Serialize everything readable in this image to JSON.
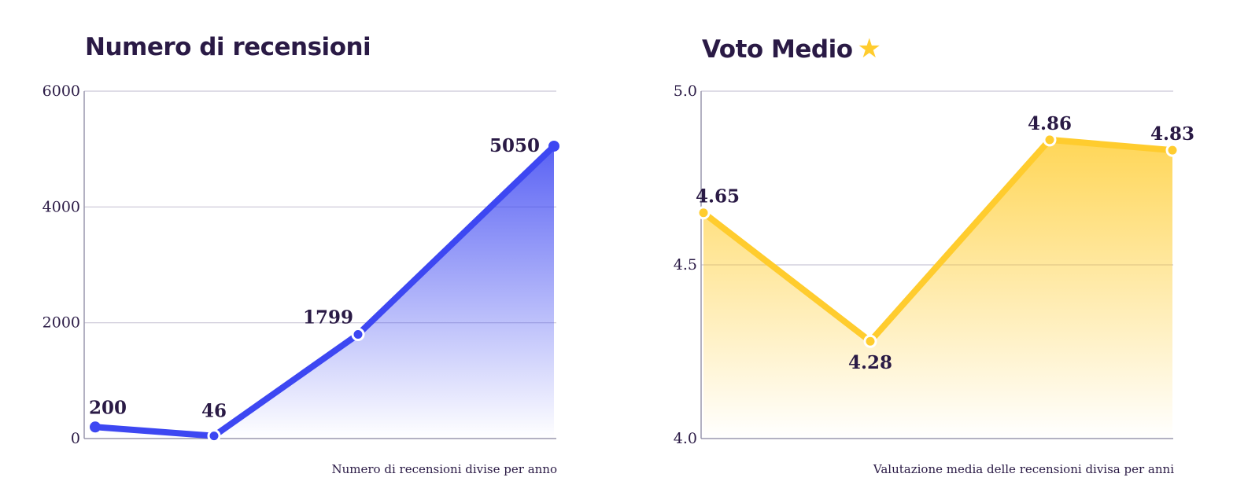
{
  "chart_data": [
    {
      "type": "area",
      "title": "Numero di recensioni",
      "caption": "Numero di recensioni divise per anno",
      "xlabel": "",
      "ylabel": "",
      "ylim": [
        0,
        6000
      ],
      "yticks": [
        0,
        2000,
        4000,
        6000
      ],
      "grid": true,
      "values": [
        200,
        46,
        1799,
        5050
      ],
      "color": "#3d47f2"
    },
    {
      "type": "area",
      "title": "Voto Medio",
      "title_icon": "star-icon",
      "caption": "Valutazione media delle recensioni divisa per anni",
      "xlabel": "",
      "ylabel": "",
      "ylim": [
        4.0,
        5.0
      ],
      "yticks": [
        4.0,
        4.5,
        5.0
      ],
      "ytick_labels": [
        "4.0",
        "4.5",
        "5.0"
      ],
      "grid": true,
      "values": [
        4.65,
        4.28,
        4.86,
        4.83
      ],
      "value_labels": [
        "4.65",
        "4.28",
        "4.86",
        "4.83"
      ],
      "color": "#ffcc2e"
    }
  ],
  "star_glyph": "★"
}
